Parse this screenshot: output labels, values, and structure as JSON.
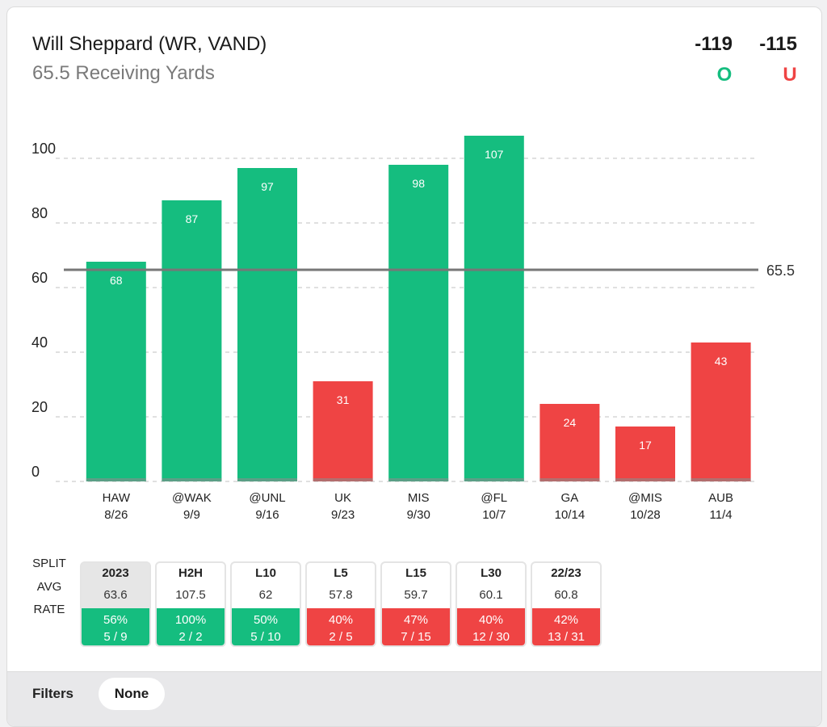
{
  "header": {
    "player": "Will Sheppard (WR, VAND)",
    "prop": "65.5 Receiving Yards",
    "over_odds": "-119",
    "under_odds": "-115",
    "over_label": "O",
    "under_label": "U"
  },
  "colors": {
    "over": "#15bd7f",
    "under": "#ef4444",
    "line": "#777777"
  },
  "chart_data": {
    "type": "bar",
    "title": "",
    "xlabel": "",
    "ylabel": "",
    "ylim": [
      0,
      110
    ],
    "yticks": [
      0,
      20,
      40,
      60,
      80,
      100
    ],
    "grid": true,
    "threshold": {
      "value": 65.5,
      "label": "65.5"
    },
    "categories": [
      {
        "opponent": "HAW",
        "date": "8/26"
      },
      {
        "opponent": "@WAK",
        "date": "9/9"
      },
      {
        "opponent": "@UNL",
        "date": "9/16"
      },
      {
        "opponent": "UK",
        "date": "9/23"
      },
      {
        "opponent": "MIS",
        "date": "9/30"
      },
      {
        "opponent": "@FL",
        "date": "10/7"
      },
      {
        "opponent": "GA",
        "date": "10/14"
      },
      {
        "opponent": "@MIS",
        "date": "10/28"
      },
      {
        "opponent": "AUB",
        "date": "11/4"
      }
    ],
    "values": [
      68,
      87,
      97,
      31,
      98,
      107,
      24,
      17,
      43
    ]
  },
  "splits": {
    "row_labels": {
      "split": "SPLIT",
      "avg": "AVG",
      "rate": "RATE"
    },
    "columns": [
      {
        "label": "2023",
        "avg": "63.6",
        "pct": "56%",
        "frac": "5 / 9",
        "result": "over",
        "active": true
      },
      {
        "label": "H2H",
        "avg": "107.5",
        "pct": "100%",
        "frac": "2 / 2",
        "result": "over",
        "active": false
      },
      {
        "label": "L10",
        "avg": "62",
        "pct": "50%",
        "frac": "5 / 10",
        "result": "over",
        "active": false
      },
      {
        "label": "L5",
        "avg": "57.8",
        "pct": "40%",
        "frac": "2 / 5",
        "result": "under",
        "active": false
      },
      {
        "label": "L15",
        "avg": "59.7",
        "pct": "47%",
        "frac": "7 / 15",
        "result": "under",
        "active": false
      },
      {
        "label": "L30",
        "avg": "60.1",
        "pct": "40%",
        "frac": "12 / 30",
        "result": "under",
        "active": false
      },
      {
        "label": "22/23",
        "avg": "60.8",
        "pct": "42%",
        "frac": "13 / 31",
        "result": "under",
        "active": false
      }
    ]
  },
  "filters": {
    "label": "Filters",
    "value": "None"
  }
}
